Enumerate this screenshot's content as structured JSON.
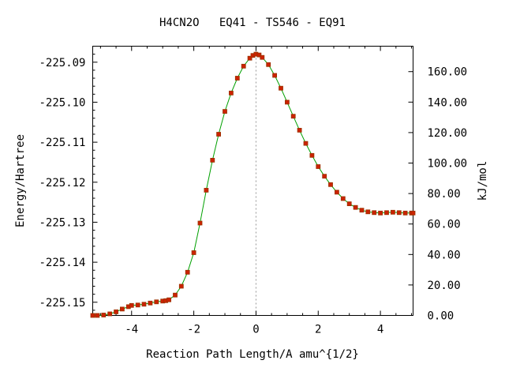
{
  "chart_data": {
    "type": "line",
    "title": "H4CN2O   EQ41 - TS546 - EQ91",
    "xlabel": "Reaction Path Length/A amu^{1/2}",
    "ylabel": "Energy/Hartree",
    "y2label": "kJ/mol",
    "xlim": [
      -5.25,
      5.05
    ],
    "ylim": [
      -225.1533,
      -225.086
    ],
    "y2lim": [
      0,
      176.7
    ],
    "x_ticks": [
      -4,
      -2,
      0,
      2,
      4
    ],
    "x_tick_labels": [
      "-4",
      "-2",
      "0",
      "2",
      "4"
    ],
    "y_ticks": [
      -225.15,
      -225.14,
      -225.13,
      -225.12,
      -225.11,
      -225.1,
      -225.09
    ],
    "y_tick_labels": [
      "-225.15",
      "-225.14",
      "-225.13",
      "-225.12",
      "-225.11",
      "-225.10",
      "-225.09"
    ],
    "y2_ticks": [
      0,
      20,
      40,
      60,
      80,
      100,
      120,
      140,
      160
    ],
    "y2_tick_labels": [
      "0.00",
      "20.00",
      "40.00",
      "60.00",
      "80.00",
      "100.00",
      "120.00",
      "140.00",
      "160.00"
    ],
    "ts_x": 0,
    "line_color": "#00a000",
    "marker_color": "#cc2200",
    "marker_edge_color": "#993300",
    "ts_line_color": "#999999",
    "grid": false,
    "series": [
      {
        "x": [
          -5.25,
          -5.1,
          -4.9,
          -4.7,
          -4.5,
          -4.3,
          -4.1,
          -4.0,
          -3.8,
          -3.6,
          -3.4,
          -3.2,
          -3.0,
          -2.9,
          -2.8,
          -2.6,
          -2.4,
          -2.2,
          -2.0,
          -1.8,
          -1.6,
          -1.4,
          -1.2,
          -1.0,
          -0.8,
          -0.6,
          -0.4,
          -0.2,
          -0.1,
          0.0,
          0.1,
          0.2,
          0.4,
          0.6,
          0.8,
          1.0,
          1.2,
          1.4,
          1.6,
          1.8,
          2.0,
          2.2,
          2.4,
          2.6,
          2.8,
          3.0,
          3.2,
          3.4,
          3.6,
          3.8,
          4.0,
          4.2,
          4.4,
          4.6,
          4.8,
          5.0,
          5.05
        ],
        "y": [
          -225.1533,
          -225.1533,
          -225.1532,
          -225.1529,
          -225.1524,
          -225.1517,
          -225.1511,
          -225.1508,
          -225.1507,
          -225.1505,
          -225.1502,
          -225.1499,
          -225.1497,
          -225.1496,
          -225.1494,
          -225.1482,
          -225.146,
          -225.1425,
          -225.1376,
          -225.1302,
          -225.122,
          -225.1145,
          -225.108,
          -225.1023,
          -225.0977,
          -225.094,
          -225.091,
          -225.089,
          -225.0883,
          -225.088,
          -225.0882,
          -225.0888,
          -225.0906,
          -225.0933,
          -225.0965,
          -225.1,
          -225.1035,
          -225.107,
          -225.1103,
          -225.1133,
          -225.1161,
          -225.1185,
          -225.1206,
          -225.1225,
          -225.1241,
          -225.1254,
          -225.1263,
          -225.127,
          -225.1274,
          -225.1276,
          -225.1277,
          -225.1276,
          -225.1275,
          -225.1276,
          -225.1277,
          -225.1277,
          -225.1277
        ]
      }
    ]
  }
}
